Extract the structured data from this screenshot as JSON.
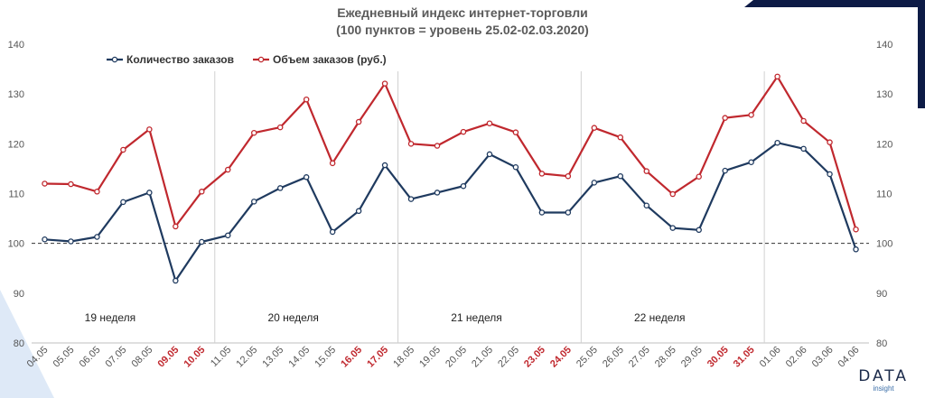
{
  "chart_data": {
    "type": "line",
    "title": "Ежедневный индекс интернет-торговли",
    "subtitle": "(100 пунктов = уровень 25.02-02.03.2020)",
    "categories": [
      "04.05",
      "05.05",
      "06.05",
      "07.05",
      "08.05",
      "09.05",
      "10.05",
      "11.05",
      "12.05",
      "13.05",
      "14.05",
      "15.05",
      "16.05",
      "17.05",
      "18.05",
      "19.05",
      "20.05",
      "21.05",
      "22.05",
      "23.05",
      "24.05",
      "25.05",
      "26.05",
      "27.05",
      "28.05",
      "29.05",
      "30.05",
      "31.05",
      "01.06",
      "02.06",
      "03.06",
      "04.06"
    ],
    "highlighted_categories": [
      "09.05",
      "10.05",
      "16.05",
      "17.05",
      "23.05",
      "24.05",
      "30.05",
      "31.05"
    ],
    "series": [
      {
        "name": "Количество заказов",
        "color": "#1f3a5f",
        "values": [
          100.8,
          100.4,
          101.3,
          108.3,
          110.2,
          92.5,
          100.3,
          101.6,
          108.4,
          111.1,
          113.3,
          102.3,
          106.5,
          115.7,
          108.9,
          110.2,
          111.5,
          117.9,
          115.3,
          106.2,
          106.2,
          112.2,
          113.5,
          107.6,
          103.1,
          102.7,
          114.6,
          116.3,
          120.2,
          119.0,
          113.9,
          98.8
        ]
      },
      {
        "name": "Объем заказов (руб.)",
        "color": "#c0282e",
        "values": [
          112.0,
          111.9,
          110.4,
          118.8,
          122.9,
          103.4,
          110.4,
          114.8,
          122.2,
          123.3,
          128.9,
          116.1,
          124.4,
          132.1,
          120.0,
          119.6,
          122.4,
          124.1,
          122.3,
          114.0,
          113.5,
          123.2,
          121.3,
          114.5,
          109.9,
          113.4,
          125.2,
          125.8,
          133.5,
          124.6,
          120.3,
          102.8
        ]
      }
    ],
    "ylim": [
      80,
      140
    ],
    "yticks": [
      80,
      90,
      100,
      110,
      120,
      130,
      140
    ],
    "reference_line": 100,
    "week_labels": [
      "19 неделя",
      "20 неделя",
      "21 неделя",
      "22 неделя"
    ],
    "grid": false,
    "legend": "top-left",
    "highlight_color": "#c0282e",
    "axis_color": "#6b6b6b"
  },
  "logo": {
    "main": "DATA",
    "sub": "insight"
  }
}
